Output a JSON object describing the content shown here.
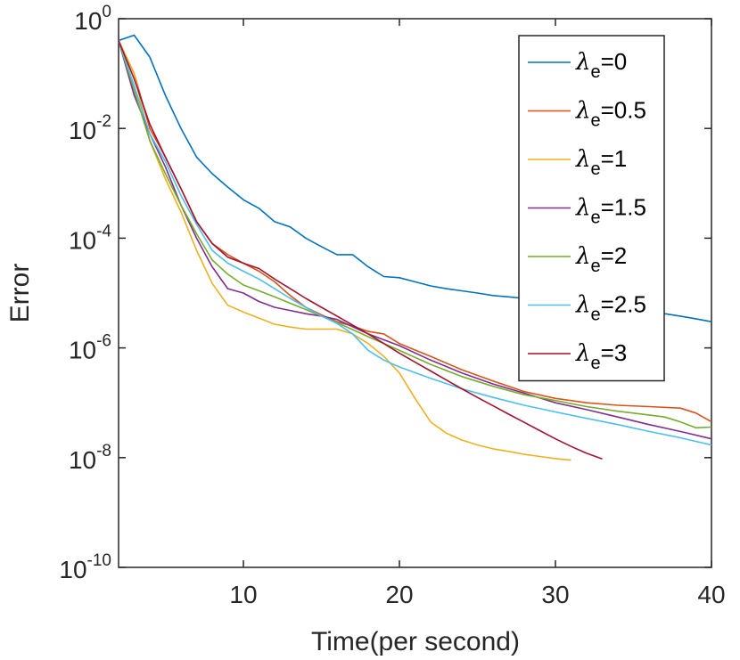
{
  "chart_data": {
    "type": "line",
    "xlabel": "Time(per second)",
    "ylabel": "Error",
    "xlim": [
      2,
      40
    ],
    "ylim": [
      1e-10,
      1
    ],
    "yscale": "log",
    "x_ticks": [
      10,
      20,
      30,
      40
    ],
    "y_ticks": [
      {
        "value": 1,
        "base": "10",
        "exp": "0"
      },
      {
        "value": 0.01,
        "base": "10",
        "exp": "-2"
      },
      {
        "value": 0.0001,
        "base": "10",
        "exp": "-4"
      },
      {
        "value": 1e-06,
        "base": "10",
        "exp": "-6"
      },
      {
        "value": 1e-08,
        "base": "10",
        "exp": "-8"
      },
      {
        "value": 1e-10,
        "base": "10",
        "exp": "-10"
      }
    ],
    "legend_position": "top-right",
    "series": [
      {
        "name": "λe=0",
        "symbol": "λ",
        "sub": "e",
        "val": "=0",
        "color": "#0072BD",
        "x": [
          2,
          3,
          4,
          5,
          6,
          7,
          8,
          9,
          10,
          11,
          12,
          13,
          14,
          15,
          16,
          17,
          18,
          19,
          20,
          21,
          22,
          23,
          24,
          25,
          26,
          27,
          28,
          29,
          30,
          31,
          32,
          33,
          34,
          35,
          36,
          37,
          38,
          39,
          40
        ],
        "y": [
          0.4,
          0.5,
          0.2,
          0.04,
          0.01,
          0.003,
          0.0015,
          0.00085,
          0.0005,
          0.00035,
          0.0002,
          0.00016,
          0.0001,
          7e-05,
          5e-05,
          5e-05,
          3e-05,
          2e-05,
          1.9e-05,
          1.6e-05,
          1.35e-05,
          1.2e-05,
          1.1e-05,
          1e-05,
          9e-06,
          8.5e-06,
          8e-06,
          7.5e-06,
          7e-06,
          6.5e-06,
          6e-06,
          5.7e-06,
          5.3e-06,
          5e-06,
          4.6e-06,
          4.2e-06,
          3.8e-06,
          3.4e-06,
          3e-06
        ]
      },
      {
        "name": "λe=0.5",
        "symbol": "λ",
        "sub": "e",
        "val": "=0.5",
        "color": "#D95319",
        "x": [
          2,
          3,
          4,
          5,
          6,
          7,
          8,
          9,
          10,
          11,
          12,
          13,
          14,
          15,
          16,
          17,
          18,
          19,
          20,
          22,
          24,
          26,
          28,
          30,
          32,
          34,
          36,
          38,
          39,
          40
        ],
        "y": [
          0.4,
          0.1,
          0.01,
          0.003,
          0.0008,
          0.0002,
          8e-05,
          5e-05,
          3.5e-05,
          2.5e-05,
          1.6e-05,
          9e-06,
          5.5e-06,
          4e-06,
          3e-06,
          2.5e-06,
          2e-06,
          1.8e-06,
          1.2e-06,
          7e-07,
          4e-07,
          2.5e-07,
          1.6e-07,
          1.2e-07,
          1e-07,
          9e-08,
          8.5e-08,
          8e-08,
          6.5e-08,
          4.5e-08
        ]
      },
      {
        "name": "λe=1",
        "symbol": "λ",
        "sub": "e",
        "val": "=1",
        "color": "#EDB120",
        "x": [
          2,
          3,
          4,
          5,
          6,
          7,
          8,
          9,
          10,
          11,
          12,
          13,
          14,
          15,
          16,
          17,
          18,
          19,
          20,
          21,
          22,
          23,
          24,
          25,
          26,
          27,
          28,
          29,
          30,
          31
        ],
        "y": [
          0.4,
          0.1,
          0.006,
          0.0012,
          0.0003,
          6e-05,
          1.5e-05,
          6e-06,
          4.5e-06,
          3.5e-06,
          2.7e-06,
          2.4e-06,
          2.2e-06,
          2.2e-06,
          2.2e-06,
          1.8e-06,
          1.2e-06,
          7e-07,
          3.5e-07,
          1.2e-07,
          4.5e-08,
          2.8e-08,
          2.1e-08,
          1.7e-08,
          1.45e-08,
          1.3e-08,
          1.15e-08,
          1.05e-08,
          9.6e-09,
          9e-09
        ]
      },
      {
        "name": "λe=1.5",
        "symbol": "λ",
        "sub": "e",
        "val": "=1.5",
        "color": "#7E2F8E",
        "x": [
          2,
          3,
          4,
          5,
          6,
          7,
          8,
          9,
          10,
          11,
          12,
          13,
          14,
          15,
          16,
          18,
          20,
          22,
          24,
          26,
          28,
          30,
          32,
          34,
          36,
          38,
          40
        ],
        "y": [
          0.4,
          0.04,
          0.008,
          0.002,
          0.0004,
          0.0001,
          3e-05,
          1.2e-05,
          1e-05,
          7e-06,
          5.5e-06,
          4.8e-06,
          4.2e-06,
          3.8e-06,
          3.3e-06,
          1.8e-06,
          1.1e-06,
          6e-07,
          3.5e-07,
          2.2e-07,
          1.5e-07,
          1e-07,
          7.5e-08,
          5.5e-08,
          4e-08,
          3e-08,
          2.2e-08
        ]
      },
      {
        "name": "λe=2",
        "symbol": "λ",
        "sub": "e",
        "val": "=2",
        "color": "#77AC30",
        "x": [
          2,
          3,
          4,
          5,
          6,
          7,
          8,
          9,
          10,
          11,
          12,
          13,
          14,
          15,
          16,
          18,
          20,
          22,
          24,
          26,
          28,
          30,
          32,
          34,
          36,
          37,
          38,
          39,
          40
        ],
        "y": [
          0.4,
          0.05,
          0.006,
          0.0015,
          0.0004,
          0.00012,
          4e-05,
          2.2e-05,
          1.4e-05,
          1.1e-05,
          8.5e-06,
          6.5e-06,
          5e-06,
          3.8e-06,
          2.9e-06,
          1.6e-06,
          9e-07,
          5e-07,
          3e-07,
          2e-07,
          1.4e-07,
          1.1e-07,
          8.5e-08,
          7e-08,
          6e-08,
          5.5e-08,
          4.5e-08,
          3.5e-08,
          3.6e-08
        ]
      },
      {
        "name": "λe=2.5",
        "symbol": "λ",
        "sub": "e",
        "val": "=2.5",
        "color": "#4DBEEE",
        "x": [
          2,
          3,
          4,
          5,
          6,
          7,
          8,
          9,
          10,
          11,
          12,
          13,
          14,
          15,
          16,
          17,
          18,
          19,
          20,
          22,
          24,
          26,
          28,
          30,
          32,
          34,
          36,
          38,
          40
        ],
        "y": [
          0.4,
          0.06,
          0.008,
          0.0025,
          0.0006,
          0.00018,
          6e-05,
          3.5e-05,
          2.5e-05,
          1.8e-05,
          1.2e-05,
          8e-06,
          5.5e-06,
          3.8e-06,
          2.8e-06,
          1.8e-06,
          9e-07,
          6e-07,
          4.5e-07,
          2.8e-07,
          1.8e-07,
          1.25e-07,
          9e-08,
          6.8e-08,
          5.2e-08,
          4e-08,
          3e-08,
          2.3e-08,
          1.7e-08
        ]
      },
      {
        "name": "λe=3",
        "symbol": "λ",
        "sub": "e",
        "val": "=3",
        "color": "#A2142F",
        "x": [
          2,
          3,
          4,
          5,
          6,
          7,
          8,
          9,
          10,
          11,
          12,
          13,
          14,
          15,
          16,
          17,
          18,
          19,
          20,
          21,
          22,
          23,
          24,
          25,
          26,
          27,
          28,
          29,
          30,
          31,
          32,
          33
        ],
        "y": [
          0.4,
          0.08,
          0.012,
          0.003,
          0.0008,
          0.0002,
          8e-05,
          4.5e-05,
          3.5e-05,
          2.8e-05,
          1.8e-05,
          1.2e-05,
          8e-06,
          5.5e-06,
          3.8e-06,
          2.6e-06,
          1.8e-06,
          1.2e-06,
          8e-07,
          5.5e-07,
          3.8e-07,
          2.6e-07,
          1.8e-07,
          1.25e-07,
          8.8e-08,
          6.2e-08,
          4.4e-08,
          3.1e-08,
          2.2e-08,
          1.6e-08,
          1.2e-08,
          9.5e-09
        ]
      }
    ]
  }
}
